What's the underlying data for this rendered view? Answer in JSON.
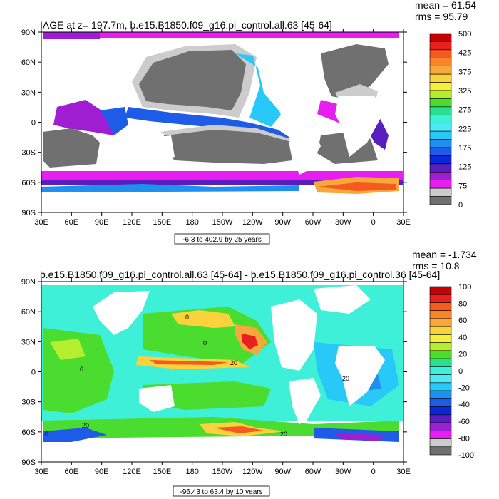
{
  "chart_data": [
    {
      "type": "heatmap",
      "title": "IAGE at z= 197.7m, b.e15.B1850.f09_g16.pi_control.all.63 [45-64]",
      "stats": [
        "mean = 61.54",
        "rms = 95.79"
      ],
      "contour_info": "-6.3 to 402.9 by 25 years",
      "x_ticks": [
        "30E",
        "60E",
        "90E",
        "120E",
        "150E",
        "180",
        "150W",
        "120W",
        "90W",
        "60W",
        "30W",
        "0",
        "30E"
      ],
      "y_ticks": [
        "90N",
        "60N",
        "30N",
        "0",
        "30S",
        "60S",
        "90S"
      ],
      "colorbar": {
        "labels": [
          "500",
          "425",
          "375",
          "325",
          "275",
          "225",
          "175",
          "125",
          "75",
          "0"
        ],
        "colors": [
          "#c40000",
          "#e82020",
          "#f55a1e",
          "#f7862a",
          "#f7a83a",
          "#fad23c",
          "#f5f03a",
          "#b4ee2e",
          "#4adc2e",
          "#28e090",
          "#3ef0d8",
          "#50e8f5",
          "#28c8f8",
          "#1e90f0",
          "#1e5ce8",
          "#0a28d8",
          "#5a1ebe",
          "#a01ed2",
          "#e61ef0",
          "#cccccc",
          "#707070"
        ]
      }
    },
    {
      "type": "heatmap",
      "title": "b.e15.B1850.f09_g16.pi_control.all.63 [45-64] - b.e15.B1850.f09_g16.pi_control.36 [45-64]",
      "stats": [
        "mean = -1.734",
        "rms = 10.8"
      ],
      "contour_info": "-96.43 to 63.4 by 10 years",
      "x_ticks": [
        "30E",
        "60E",
        "90E",
        "120E",
        "150E",
        "180",
        "150W",
        "120W",
        "90W",
        "60W",
        "30W",
        "0",
        "30E"
      ],
      "y_ticks": [
        "90N",
        "60N",
        "30N",
        "0",
        "30S",
        "60S",
        "90S"
      ],
      "contour_labels": [
        "0",
        "0",
        "0",
        "20",
        "-20",
        "20",
        "-20",
        "0"
      ],
      "colorbar": {
        "labels": [
          "100",
          "80",
          "60",
          "40",
          "20",
          "0",
          "-20",
          "-40",
          "-60",
          "-80",
          "-100"
        ],
        "colors": [
          "#c40000",
          "#e82020",
          "#f55a1e",
          "#f7862a",
          "#f7a83a",
          "#fad23c",
          "#f5f03a",
          "#b4ee2e",
          "#4adc2e",
          "#28e090",
          "#3ef0d8",
          "#50e8f5",
          "#28c8f8",
          "#1e90f0",
          "#1e5ce8",
          "#0a28d8",
          "#5a1ebe",
          "#a01ed2",
          "#e61ef0",
          "#cccccc",
          "#707070"
        ]
      }
    }
  ]
}
